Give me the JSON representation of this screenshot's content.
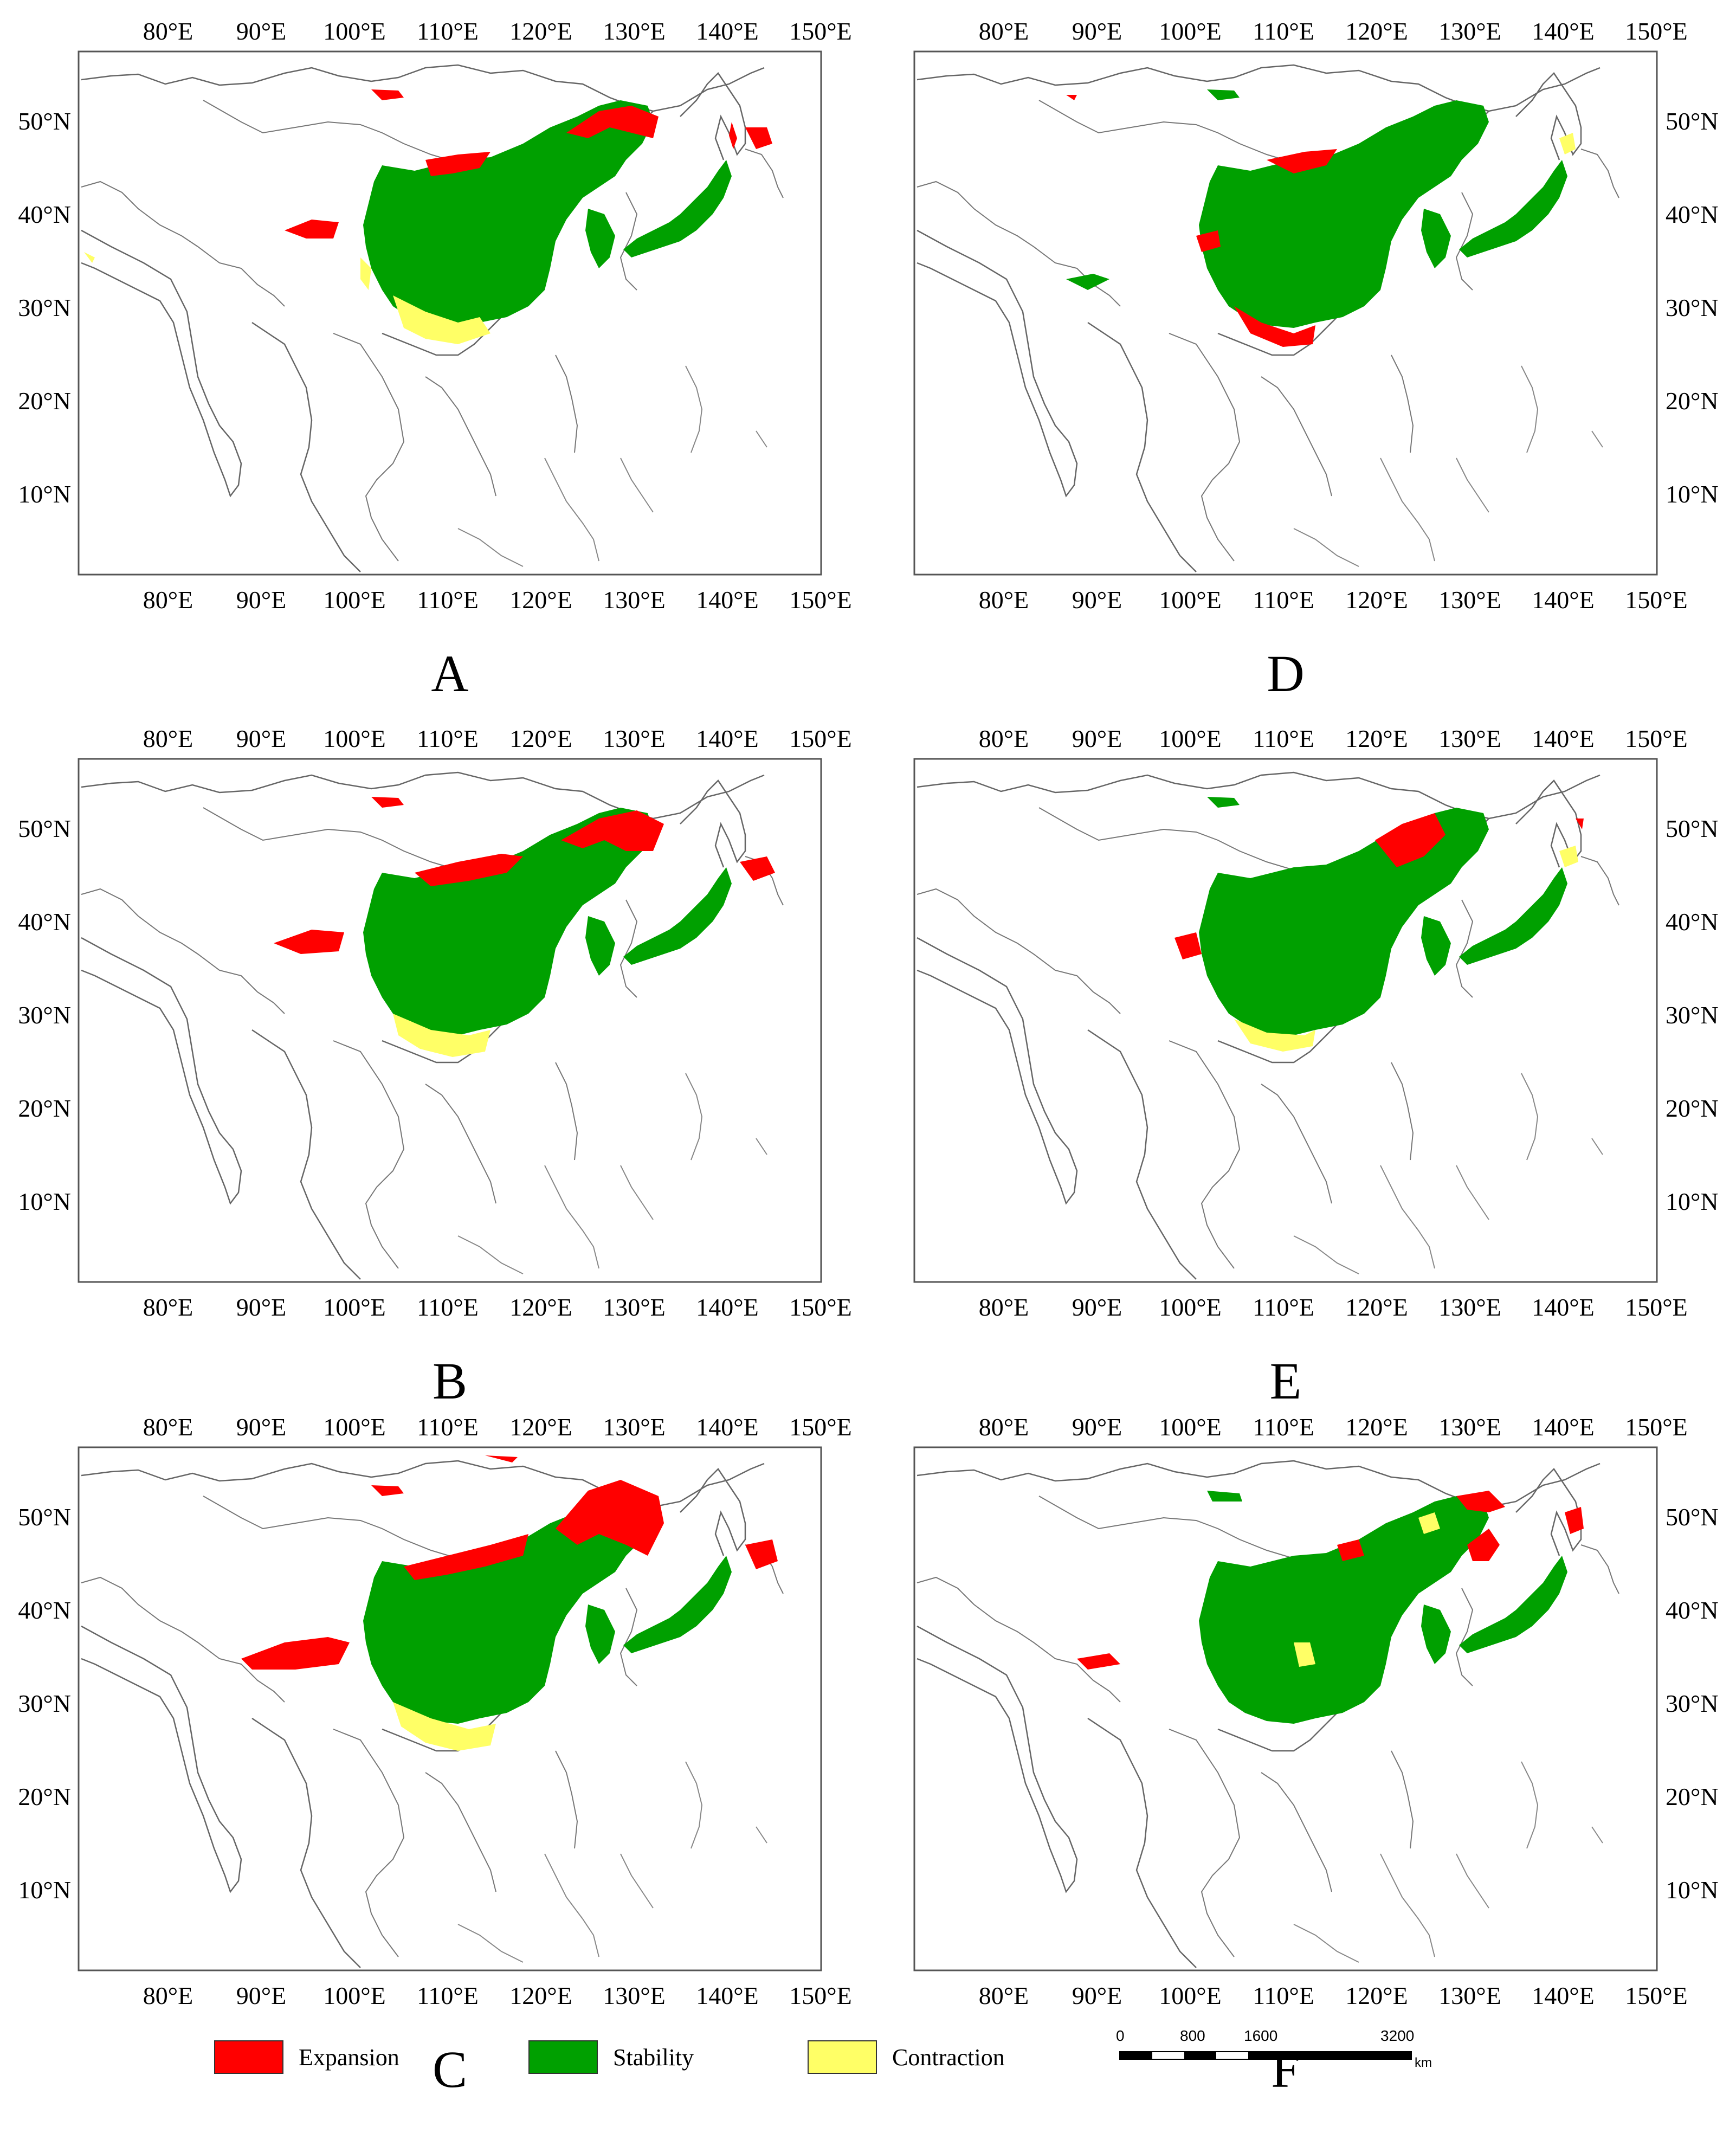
{
  "colors": {
    "expansion": "#ff0000",
    "stability": "#00a000",
    "contraction": "#ffff66",
    "coastline": "#555555",
    "frame": "#555555"
  },
  "axes": {
    "lon_labels": [
      "80°E",
      "90°E",
      "100°E",
      "110°E",
      "120°E",
      "130°E",
      "140°E",
      "150°E"
    ],
    "lat_labels": [
      "50°N",
      "40°N",
      "30°N",
      "20°N",
      "10°N"
    ]
  },
  "panels": [
    {
      "id": "A",
      "label": "A"
    },
    {
      "id": "B",
      "label": "B"
    },
    {
      "id": "C",
      "label": "C"
    },
    {
      "id": "D",
      "label": "D"
    },
    {
      "id": "E",
      "label": "E"
    },
    {
      "id": "F",
      "label": "F"
    }
  ],
  "legend": {
    "items": [
      {
        "label": "Expansion",
        "color": "#ff0000"
      },
      {
        "label": "Stability",
        "color": "#00a000"
      },
      {
        "label": "Contraction",
        "color": "#ffff66"
      }
    ]
  },
  "scalebar": {
    "labels": [
      "0",
      "800",
      "1600",
      "3200"
    ],
    "unit": "km"
  }
}
